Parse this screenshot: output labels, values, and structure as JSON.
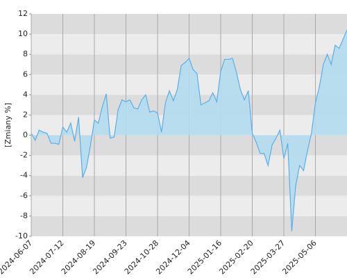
{
  "chart_data": {
    "type": "area",
    "y_label": "[Zmiany %]",
    "x": [
      "2024-06-07",
      null,
      null,
      null,
      null,
      null,
      null,
      null,
      "2024-07-12",
      null,
      null,
      null,
      null,
      null,
      null,
      null,
      "2024-08-19",
      null,
      null,
      null,
      null,
      null,
      null,
      null,
      "2024-09-23",
      null,
      null,
      null,
      null,
      null,
      null,
      null,
      "2024-10-28",
      null,
      null,
      null,
      null,
      null,
      null,
      null,
      "2024-12-04",
      null,
      null,
      null,
      null,
      null,
      null,
      null,
      "2025-01-16",
      null,
      null,
      null,
      null,
      null,
      null,
      null,
      "2025-02-20",
      null,
      null,
      null,
      null,
      null,
      null,
      null,
      "2025-03-27",
      null,
      null,
      null,
      null,
      null,
      null,
      null,
      "2025-05-06",
      null,
      null,
      null,
      null,
      null,
      null,
      null,
      null
    ],
    "values": [
      0.2,
      -0.5,
      0.5,
      0.3,
      0.2,
      -0.8,
      -0.8,
      -0.9,
      0.8,
      0.3,
      1.2,
      -0.6,
      1.8,
      -4.2,
      -3.2,
      -1.0,
      1.5,
      1.2,
      2.8,
      4.1,
      -0.3,
      -0.2,
      2.5,
      3.5,
      3.3,
      3.5,
      2.7,
      2.6,
      3.5,
      4.0,
      2.3,
      2.4,
      2.2,
      0.3,
      3.2,
      4.4,
      3.4,
      4.5,
      6.9,
      7.2,
      7.6,
      6.5,
      6.1,
      3.0,
      3.2,
      3.4,
      4.2,
      3.3,
      6.3,
      7.5,
      7.5,
      7.6,
      6.2,
      4.5,
      3.5,
      4.4,
      0.2,
      -0.7,
      -1.8,
      -1.8,
      -3.0,
      -1.0,
      -0.3,
      0.5,
      -2.3,
      -0.8,
      -9.5,
      -5.0,
      -3.0,
      -3.5,
      -1.5,
      0.2,
      3.2,
      4.8,
      7.0,
      8.0,
      7.0,
      8.9,
      8.6,
      9.5,
      10.4
    ],
    "color": "#5aaee8",
    "area_color": "#b3dcf0",
    "ylim": [
      -10,
      12
    ],
    "yticks": [
      -10,
      -8,
      -6,
      -4,
      -2,
      0,
      2,
      4,
      6,
      8,
      10,
      12
    ],
    "grid": true
  }
}
